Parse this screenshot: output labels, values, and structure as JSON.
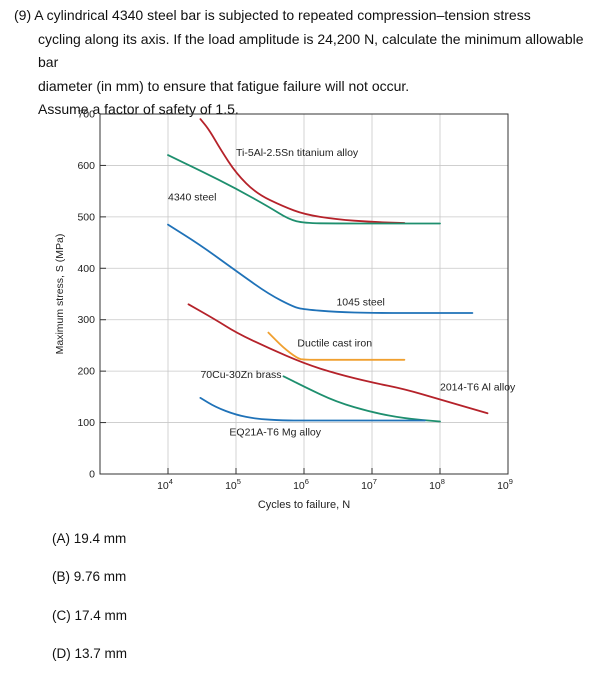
{
  "question": {
    "lines": [
      "(9) A cylindrical 4340 steel bar is subjected to repeated compression–tension stress",
      "cycling along its axis. If the load amplitude is 24,200 N, calculate the minimum allowable bar",
      "diameter (in mm) to ensure that fatigue failure will not occur.",
      "Assume a factor of safety of 1.5."
    ]
  },
  "options": [
    {
      "label": "(A) 19.4 mm"
    },
    {
      "label": "(B) 9.76 mm"
    },
    {
      "label": "(C) 17.4 mm"
    },
    {
      "label": "(D) 13.7 mm"
    }
  ],
  "chart_data": {
    "type": "line",
    "xlabel": "Cycles to failure, N",
    "ylabel": "Maximum stress, S (MPa)",
    "x_scale": "log",
    "xlim": [
      1000,
      1000000000
    ],
    "ylim": [
      0,
      700
    ],
    "x_ticks": [
      {
        "value": 10000,
        "base": "10",
        "exp": "4"
      },
      {
        "value": 100000,
        "base": "10",
        "exp": "5"
      },
      {
        "value": 1000000,
        "base": "10",
        "exp": "6"
      },
      {
        "value": 10000000,
        "base": "10",
        "exp": "7"
      },
      {
        "value": 100000000,
        "base": "10",
        "exp": "8"
      },
      {
        "value": 1000000000,
        "base": "10",
        "exp": "9"
      }
    ],
    "y_ticks": [
      0,
      100,
      200,
      300,
      400,
      500,
      600,
      700
    ],
    "grid": true,
    "series": [
      {
        "name": "Ti-5Al-2.5Sn titanium alloy",
        "color": "#b5222a",
        "x": [
          30000,
          40000,
          60000,
          100000,
          200000,
          500000,
          1000000,
          3000000,
          10000000,
          30000000
        ],
        "y": [
          690,
          670,
          630,
          585,
          545,
          520,
          505,
          495,
          490,
          488
        ]
      },
      {
        "name": "4340 steel",
        "color": "#1e8f6e",
        "x": [
          10000,
          30000,
          100000,
          300000,
          600000,
          1000000,
          3000000,
          10000000,
          100000000
        ],
        "y": [
          620,
          590,
          555,
          520,
          495,
          488,
          487,
          487,
          487
        ]
      },
      {
        "name": "1045 steel",
        "color": "#1f72b8",
        "x": [
          10000,
          30000,
          100000,
          300000,
          700000,
          1000000,
          3000000,
          10000000,
          100000000,
          300000000
        ],
        "y": [
          485,
          445,
          395,
          350,
          325,
          320,
          315,
          313,
          313,
          313
        ]
      },
      {
        "name": "Ductile cast iron",
        "color": "#f0a030",
        "x": [
          300000,
          500000,
          800000,
          1000000,
          3000000,
          10000000,
          30000000
        ],
        "y": [
          275,
          245,
          225,
          222,
          222,
          222,
          222
        ]
      },
      {
        "name": "70Cu-30Zn brass",
        "color": "#1e8f6e",
        "x": [
          500000,
          1000000,
          3000000,
          10000000,
          30000000,
          100000000
        ],
        "y": [
          190,
          170,
          140,
          120,
          108,
          102
        ]
      },
      {
        "name": "2014-T6 Al alloy",
        "color": "#b5222a",
        "x": [
          20000,
          50000,
          100000,
          300000,
          1000000,
          3000000,
          10000000,
          30000000,
          100000000,
          500000000
        ],
        "y": [
          330,
          300,
          275,
          245,
          215,
          195,
          178,
          165,
          145,
          118
        ]
      },
      {
        "name": "EQ21A-T6 Mg alloy",
        "color": "#1f72b8",
        "x": [
          30000,
          50000,
          100000,
          200000,
          500000,
          1000000,
          3000000,
          10000000,
          60000000
        ],
        "y": [
          148,
          130,
          115,
          107,
          104,
          104,
          104,
          104,
          104
        ]
      }
    ],
    "annotations": [
      {
        "text": "Ti-5Al-2.5Sn titanium alloy",
        "x": 100000,
        "y": 618
      },
      {
        "text": "4340 steel",
        "x": 10000,
        "y": 532
      },
      {
        "text": "1045 steel",
        "x": 3000000,
        "y": 328
      },
      {
        "text": "Ductile cast iron",
        "x": 800000,
        "y": 248
      },
      {
        "text": "70Cu-30Zn brass",
        "x": 30000,
        "y": 187
      },
      {
        "text": "2014-T6 Al alloy",
        "x": 100000000,
        "y": 162
      },
      {
        "text": "EQ21A-T6 Mg alloy",
        "x": 80000,
        "y": 75
      }
    ]
  }
}
